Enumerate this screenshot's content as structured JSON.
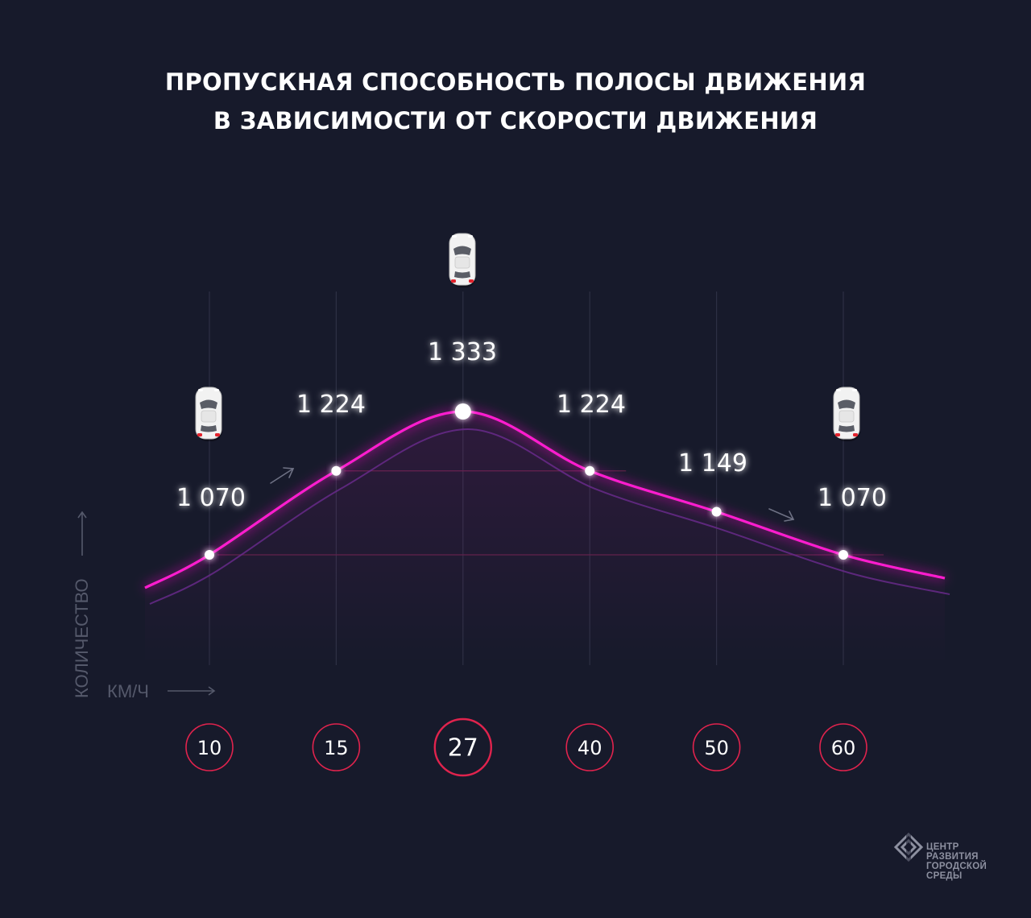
{
  "title_lines": [
    "ПРОПУСКНАЯ СПОСОБНОСТЬ ПОЛОСЫ ДВИЖЕНИЯ",
    "В ЗАВИСИМОСТИ ОТ СКОРОСТИ ДВИЖЕНИЯ"
  ],
  "chart_data": {
    "type": "line",
    "title": "ПРОПУСКНАЯ СПОСОБНОСТЬ ПОЛОСЫ ДВИЖЕНИЯ В ЗАВИСИМОСТИ ОТ СКОРОСТИ ДВИЖЕНИЯ",
    "xlabel": "КМ/Ч",
    "ylabel": "КОЛИЧЕСТВО",
    "x": [
      10,
      15,
      27,
      40,
      50,
      60
    ],
    "x_labels": [
      "10",
      "15",
      "27",
      "40",
      "50",
      "60"
    ],
    "values": [
      1070,
      1224,
      1333,
      1224,
      1149,
      1070
    ],
    "value_labels": [
      "1 070",
      "1 224",
      "1 333",
      "1 224",
      "1 149",
      "1 070"
    ],
    "highlight_x": 27,
    "car_icons_at": [
      10,
      27,
      60
    ],
    "x_axis": "categorical-evenly-spaced",
    "grid": "vertical",
    "legend": "none",
    "colors": {
      "background": "#171a2b",
      "line": "#ff1fcf",
      "shadow_line": "#6c2a8f",
      "tick_circle": "#e0234d",
      "point": "#ffffff",
      "grid": "#2d3044",
      "axis_text": "#55596b"
    }
  },
  "logo": {
    "icon": "city-center-logo-icon",
    "lines": [
      "ЦЕНТР",
      "РАЗВИТИЯ",
      "ГОРОДСКОЙ",
      "СРЕДЫ"
    ]
  }
}
